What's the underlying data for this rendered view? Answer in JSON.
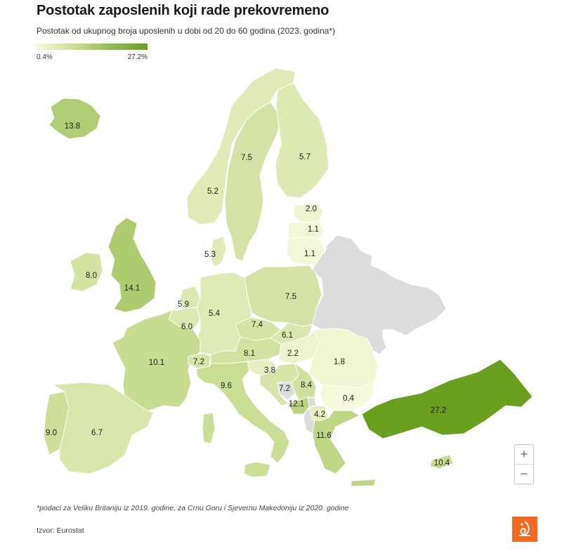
{
  "title": "Postotak zaposlenih koji rade prekovremeno",
  "subtitle": "Postotak od ukupnog broja uposlenih u dobi od 20 do 60 godina (2023. godina*)",
  "legend": {
    "min_label": "0.4%",
    "max_label": "27.2%",
    "min_color": "#f7f9dd",
    "max_color": "#6a9e1e"
  },
  "footnote": "*podaci za Veliku Britaniju iz 2019. godine, za Crnu Goru i Sjevernu Makedoniju iz 2020. godine",
  "source": "Izvor: Eurostat",
  "zoom": {
    "in_label": "+",
    "out_label": "−"
  },
  "no_data_color": "#dcdcdc",
  "chart_data": {
    "type": "choropleth",
    "unit": "%",
    "range": [
      0.4,
      27.2
    ],
    "values": [
      {
        "country": "Iceland",
        "value": 13.8,
        "label": "13.8"
      },
      {
        "country": "Sweden",
        "value": 7.5,
        "label": "7.5"
      },
      {
        "country": "Finland",
        "value": 5.7,
        "label": "5.7"
      },
      {
        "country": "Norway",
        "value": 5.2,
        "label": "5.2"
      },
      {
        "country": "Estonia",
        "value": 2.0,
        "label": "2.0"
      },
      {
        "country": "Latvia",
        "value": 1.1,
        "label": "1.1"
      },
      {
        "country": "Lithuania",
        "value": 1.1,
        "label": "1.1"
      },
      {
        "country": "Denmark",
        "value": 5.3,
        "label": "5.3"
      },
      {
        "country": "Ireland",
        "value": 8.0,
        "label": "8.0"
      },
      {
        "country": "United Kingdom",
        "value": 14.1,
        "label": "14.1"
      },
      {
        "country": "Netherlands",
        "value": 5.9,
        "label": "5.9"
      },
      {
        "country": "Germany",
        "value": 5.4,
        "label": "5.4"
      },
      {
        "country": "Poland",
        "value": 7.5,
        "label": "7.5"
      },
      {
        "country": "Belgium",
        "value": 6.0,
        "label": "6.0"
      },
      {
        "country": "Czechia",
        "value": 7.4,
        "label": "7.4"
      },
      {
        "country": "Slovakia",
        "value": 6.1,
        "label": "6.1"
      },
      {
        "country": "France",
        "value": 10.1,
        "label": "10.1"
      },
      {
        "country": "Switzerland",
        "value": 7.2,
        "label": "7.2"
      },
      {
        "country": "Austria",
        "value": 8.1,
        "label": "8.1"
      },
      {
        "country": "Hungary",
        "value": 2.2,
        "label": "2.2"
      },
      {
        "country": "Romania",
        "value": 1.8,
        "label": "1.8"
      },
      {
        "country": "Slovenia",
        "value": 3.8,
        "label": "3.8"
      },
      {
        "country": "Croatia",
        "value": 7.2,
        "label": "7.2"
      },
      {
        "country": "Serbia",
        "value": 8.4,
        "label": "8.4"
      },
      {
        "country": "Italy",
        "value": 9.6,
        "label": "9.6"
      },
      {
        "country": "Montenegro",
        "value": 12.1,
        "label": "12.1"
      },
      {
        "country": "Bulgaria",
        "value": 0.4,
        "label": "0.4"
      },
      {
        "country": "North Macedonia",
        "value": 4.2,
        "label": "4.2"
      },
      {
        "country": "Greece",
        "value": 11.6,
        "label": "11.6"
      },
      {
        "country": "Turkey",
        "value": 27.2,
        "label": "27.2"
      },
      {
        "country": "Cyprus",
        "value": 10.4,
        "label": "10.4"
      },
      {
        "country": "Portugal",
        "value": 9.0,
        "label": "9.0"
      },
      {
        "country": "Spain",
        "value": 6.7,
        "label": "6.7"
      }
    ]
  }
}
